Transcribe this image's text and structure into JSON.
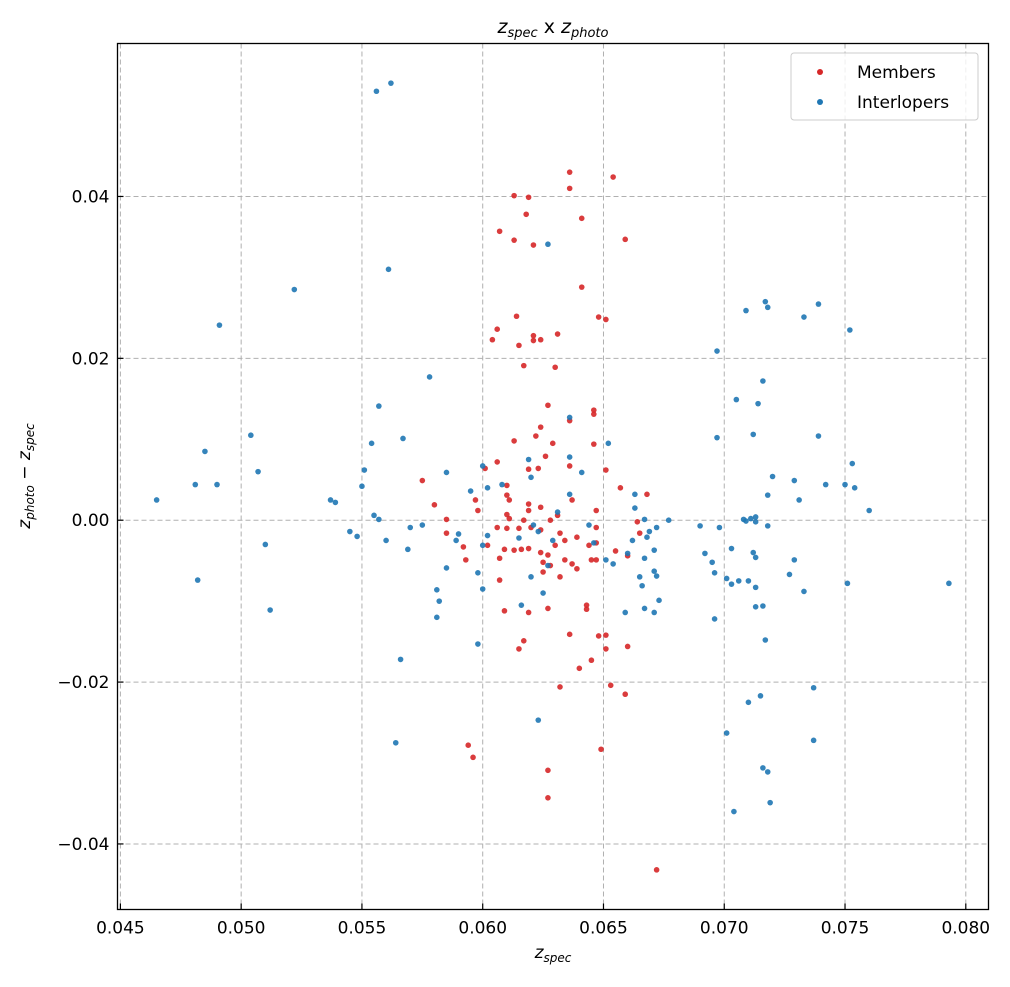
{
  "chart_data": {
    "type": "scatter",
    "title": {
      "a": "z",
      "a_sub": "spec",
      "mid": " x ",
      "b": "z",
      "b_sub": "photo"
    },
    "xlabel": {
      "var": "z",
      "sub": "spec"
    },
    "ylabel": {
      "a": "z",
      "a_sub": "photo",
      "op": " − ",
      "b": "z",
      "b_sub": "spec"
    },
    "xlim": [
      0.04488,
      0.08094
    ],
    "ylim": [
      -0.0481,
      0.0589
    ],
    "grid": true,
    "legend_position": "top-right",
    "xticks": [
      0.045,
      0.05,
      0.055,
      0.06,
      0.065,
      0.07,
      0.075,
      0.08
    ],
    "xtick_labels": [
      "0.045",
      "0.050",
      "0.055",
      "0.060",
      "0.065",
      "0.070",
      "0.075",
      "0.080"
    ],
    "yticks": [
      0.04,
      0.02,
      0.0,
      -0.02,
      -0.04
    ],
    "ytick_labels": [
      "0.04",
      "0.02",
      "0.00",
      "−0.02",
      "−0.04"
    ],
    "series": [
      {
        "name": "Members",
        "color": "#d62728",
        "points": [
          [
            0.0636,
            0.043
          ],
          [
            0.0636,
            0.041
          ],
          [
            0.0654,
            0.0424
          ],
          [
            0.0613,
            0.0401
          ],
          [
            0.0619,
            0.0399
          ],
          [
            0.0618,
            0.0378
          ],
          [
            0.0641,
            0.0373
          ],
          [
            0.0607,
            0.0357
          ],
          [
            0.0613,
            0.0346
          ],
          [
            0.0621,
            0.034
          ],
          [
            0.0659,
            0.0347
          ],
          [
            0.0641,
            0.0288
          ],
          [
            0.0614,
            0.0252
          ],
          [
            0.0606,
            0.0236
          ],
          [
            0.0648,
            0.0251
          ],
          [
            0.0651,
            0.0248
          ],
          [
            0.0604,
            0.0223
          ],
          [
            0.0615,
            0.0216
          ],
          [
            0.0621,
            0.0228
          ],
          [
            0.0621,
            0.0222
          ],
          [
            0.0624,
            0.0223
          ],
          [
            0.0631,
            0.023
          ],
          [
            0.0617,
            0.0191
          ],
          [
            0.063,
            0.0189
          ],
          [
            0.0627,
            0.0142
          ],
          [
            0.0646,
            0.0136
          ],
          [
            0.0646,
            0.0131
          ],
          [
            0.0636,
            0.0123
          ],
          [
            0.0624,
            0.0115
          ],
          [
            0.0613,
            0.0098
          ],
          [
            0.0622,
            0.0104
          ],
          [
            0.0629,
            0.0095
          ],
          [
            0.0646,
            0.0094
          ],
          [
            0.0626,
            0.0079
          ],
          [
            0.0636,
            0.0067
          ],
          [
            0.0606,
            0.0072
          ],
          [
            0.0601,
            0.0064
          ],
          [
            0.0619,
            0.0063
          ],
          [
            0.0623,
            0.0064
          ],
          [
            0.0651,
            0.0062
          ],
          [
            0.0575,
            0.0049
          ],
          [
            0.0657,
            0.004
          ],
          [
            0.0668,
            0.0032
          ],
          [
            0.058,
            0.0019
          ],
          [
            0.0597,
            0.0025
          ],
          [
            0.061,
            0.0043
          ],
          [
            0.061,
            0.0031
          ],
          [
            0.0611,
            0.0025
          ],
          [
            0.0619,
            0.002
          ],
          [
            0.0619,
            0.0012
          ],
          [
            0.0624,
            0.0016
          ],
          [
            0.0637,
            0.0025
          ],
          [
            0.0585,
            0.0001
          ],
          [
            0.0598,
            0.0012
          ],
          [
            0.061,
            0.0007
          ],
          [
            0.0611,
            0.0002
          ],
          [
            0.0617,
            0.0
          ],
          [
            0.0628,
            0.0
          ],
          [
            0.0631,
            0.0006
          ],
          [
            0.0647,
            0.0012
          ],
          [
            0.0585,
            -0.0016
          ],
          [
            0.0606,
            -0.0009
          ],
          [
            0.061,
            -0.001
          ],
          [
            0.0615,
            -0.001
          ],
          [
            0.062,
            -0.0009
          ],
          [
            0.0624,
            -0.0012
          ],
          [
            0.0632,
            -0.0016
          ],
          [
            0.0647,
            -0.0009
          ],
          [
            0.0664,
            -0.0002
          ],
          [
            0.0665,
            -0.0016
          ],
          [
            0.0592,
            -0.0033
          ],
          [
            0.0602,
            -0.0031
          ],
          [
            0.0609,
            -0.0036
          ],
          [
            0.0613,
            -0.0037
          ],
          [
            0.0616,
            -0.0036
          ],
          [
            0.0619,
            -0.0035
          ],
          [
            0.0624,
            -0.004
          ],
          [
            0.0627,
            -0.0043
          ],
          [
            0.063,
            -0.0031
          ],
          [
            0.0634,
            -0.0025
          ],
          [
            0.0639,
            -0.0021
          ],
          [
            0.0644,
            -0.0031
          ],
          [
            0.0647,
            -0.0028
          ],
          [
            0.0655,
            -0.0038
          ],
          [
            0.066,
            -0.0044
          ],
          [
            0.0593,
            -0.0049
          ],
          [
            0.0607,
            -0.0047
          ],
          [
            0.0625,
            -0.0052
          ],
          [
            0.0628,
            -0.0056
          ],
          [
            0.0634,
            -0.0049
          ],
          [
            0.0637,
            -0.0054
          ],
          [
            0.0645,
            -0.0049
          ],
          [
            0.0647,
            -0.0049
          ],
          [
            0.0607,
            -0.0074
          ],
          [
            0.0632,
            -0.007
          ],
          [
            0.0625,
            -0.0064
          ],
          [
            0.0639,
            -0.006
          ],
          [
            0.0643,
            -0.0105
          ],
          [
            0.0643,
            -0.011
          ],
          [
            0.0609,
            -0.0112
          ],
          [
            0.0619,
            -0.0114
          ],
          [
            0.0627,
            -0.0109
          ],
          [
            0.0636,
            -0.0141
          ],
          [
            0.0617,
            -0.0149
          ],
          [
            0.0615,
            -0.0159
          ],
          [
            0.0648,
            -0.0143
          ],
          [
            0.0651,
            -0.0142
          ],
          [
            0.066,
            -0.0156
          ],
          [
            0.0645,
            -0.0173
          ],
          [
            0.064,
            -0.0183
          ],
          [
            0.0651,
            -0.0159
          ],
          [
            0.0653,
            -0.0204
          ],
          [
            0.0659,
            -0.0215
          ],
          [
            0.0632,
            -0.0206
          ],
          [
            0.0594,
            -0.0278
          ],
          [
            0.0596,
            -0.0293
          ],
          [
            0.0649,
            -0.0283
          ],
          [
            0.0627,
            -0.0309
          ],
          [
            0.0627,
            -0.0343
          ],
          [
            0.0672,
            -0.0432
          ]
        ]
      },
      {
        "name": "Interlopers",
        "color": "#1f77b4",
        "points": [
          [
            0.0562,
            0.054
          ],
          [
            0.0556,
            0.053
          ],
          [
            0.0627,
            0.0341
          ],
          [
            0.0561,
            0.031
          ],
          [
            0.0522,
            0.0285
          ],
          [
            0.0491,
            0.0241
          ],
          [
            0.0709,
            0.0259
          ],
          [
            0.0717,
            0.027
          ],
          [
            0.0718,
            0.0263
          ],
          [
            0.0739,
            0.0267
          ],
          [
            0.0733,
            0.0251
          ],
          [
            0.0752,
            0.0235
          ],
          [
            0.0697,
            0.0209
          ],
          [
            0.0578,
            0.0177
          ],
          [
            0.0716,
            0.0172
          ],
          [
            0.0705,
            0.0149
          ],
          [
            0.0714,
            0.0144
          ],
          [
            0.0557,
            0.0141
          ],
          [
            0.0636,
            0.0127
          ],
          [
            0.0504,
            0.0105
          ],
          [
            0.0567,
            0.0101
          ],
          [
            0.0554,
            0.0095
          ],
          [
            0.0652,
            0.0095
          ],
          [
            0.0697,
            0.0102
          ],
          [
            0.0712,
            0.0106
          ],
          [
            0.0739,
            0.0104
          ],
          [
            0.0485,
            0.0085
          ],
          [
            0.0636,
            0.0078
          ],
          [
            0.0619,
            0.0075
          ],
          [
            0.0507,
            0.006
          ],
          [
            0.0551,
            0.0062
          ],
          [
            0.0585,
            0.0059
          ],
          [
            0.06,
            0.0067
          ],
          [
            0.0641,
            0.0059
          ],
          [
            0.072,
            0.0054
          ],
          [
            0.0753,
            0.007
          ],
          [
            0.0729,
            0.0049
          ],
          [
            0.0481,
            0.0044
          ],
          [
            0.049,
            0.0044
          ],
          [
            0.055,
            0.0042
          ],
          [
            0.0608,
            0.0044
          ],
          [
            0.0602,
            0.004
          ],
          [
            0.062,
            0.0053
          ],
          [
            0.0742,
            0.0044
          ],
          [
            0.075,
            0.0044
          ],
          [
            0.0754,
            0.004
          ],
          [
            0.0465,
            0.0025
          ],
          [
            0.0537,
            0.0025
          ],
          [
            0.0539,
            0.0022
          ],
          [
            0.0595,
            0.0036
          ],
          [
            0.0636,
            0.0032
          ],
          [
            0.0663,
            0.0015
          ],
          [
            0.0663,
            0.0032
          ],
          [
            0.0718,
            0.0031
          ],
          [
            0.0731,
            0.0025
          ],
          [
            0.076,
            0.0012
          ],
          [
            0.0555,
            0.0006
          ],
          [
            0.0557,
            0.0001
          ],
          [
            0.0631,
            0.001
          ],
          [
            0.0667,
            0.0001
          ],
          [
            0.0677,
            0.0
          ],
          [
            0.0708,
            0.0001
          ],
          [
            0.0709,
            -0.0001
          ],
          [
            0.0711,
            0.0002
          ],
          [
            0.0713,
            -0.0002
          ],
          [
            0.0718,
            -0.0007
          ],
          [
            0.0713,
            0.0004
          ],
          [
            0.0545,
            -0.0014
          ],
          [
            0.0548,
            -0.002
          ],
          [
            0.057,
            -0.0009
          ],
          [
            0.0575,
            -0.0006
          ],
          [
            0.059,
            -0.0017
          ],
          [
            0.0602,
            -0.0019
          ],
          [
            0.0621,
            -0.0006
          ],
          [
            0.0644,
            -0.0006
          ],
          [
            0.0669,
            -0.0014
          ],
          [
            0.0672,
            -0.0009
          ],
          [
            0.069,
            -0.0007
          ],
          [
            0.0698,
            -0.0009
          ],
          [
            0.056,
            -0.0025
          ],
          [
            0.0589,
            -0.0025
          ],
          [
            0.0615,
            -0.0022
          ],
          [
            0.0623,
            -0.0014
          ],
          [
            0.0629,
            -0.0025
          ],
          [
            0.0668,
            -0.0021
          ],
          [
            0.0662,
            -0.0025
          ],
          [
            0.0646,
            -0.0028
          ],
          [
            0.051,
            -0.003
          ],
          [
            0.0569,
            -0.0036
          ],
          [
            0.06,
            -0.0031
          ],
          [
            0.0671,
            -0.0037
          ],
          [
            0.0692,
            -0.0041
          ],
          [
            0.0703,
            -0.0035
          ],
          [
            0.0712,
            -0.004
          ],
          [
            0.0651,
            -0.0049
          ],
          [
            0.066,
            -0.0041
          ],
          [
            0.0667,
            -0.0047
          ],
          [
            0.0695,
            -0.0052
          ],
          [
            0.0729,
            -0.0049
          ],
          [
            0.0627,
            -0.0056
          ],
          [
            0.0585,
            -0.0059
          ],
          [
            0.0654,
            -0.0054
          ],
          [
            0.0671,
            -0.0063
          ],
          [
            0.0696,
            -0.0065
          ],
          [
            0.0713,
            -0.0046
          ],
          [
            0.0701,
            -0.0072
          ],
          [
            0.0727,
            -0.0067
          ],
          [
            0.0665,
            -0.007
          ],
          [
            0.0672,
            -0.0069
          ],
          [
            0.062,
            -0.007
          ],
          [
            0.0598,
            -0.0065
          ],
          [
            0.0706,
            -0.0075
          ],
          [
            0.071,
            -0.0075
          ],
          [
            0.0482,
            -0.0074
          ],
          [
            0.0703,
            -0.0079
          ],
          [
            0.0713,
            -0.0083
          ],
          [
            0.0751,
            -0.0078
          ],
          [
            0.0793,
            -0.0078
          ],
          [
            0.0733,
            -0.0088
          ],
          [
            0.0581,
            -0.0086
          ],
          [
            0.0582,
            -0.01
          ],
          [
            0.06,
            -0.0085
          ],
          [
            0.0666,
            -0.0081
          ],
          [
            0.0673,
            -0.0099
          ],
          [
            0.0616,
            -0.0105
          ],
          [
            0.0625,
            -0.009
          ],
          [
            0.0713,
            -0.0107
          ],
          [
            0.0716,
            -0.0106
          ],
          [
            0.0512,
            -0.0111
          ],
          [
            0.0581,
            -0.012
          ],
          [
            0.0659,
            -0.0114
          ],
          [
            0.0667,
            -0.0109
          ],
          [
            0.0671,
            -0.0114
          ],
          [
            0.0696,
            -0.0122
          ],
          [
            0.0598,
            -0.0153
          ],
          [
            0.0717,
            -0.0148
          ],
          [
            0.0566,
            -0.0172
          ],
          [
            0.0623,
            -0.0247
          ],
          [
            0.071,
            -0.0225
          ],
          [
            0.0715,
            -0.0217
          ],
          [
            0.0737,
            -0.0207
          ],
          [
            0.0701,
            -0.0263
          ],
          [
            0.0564,
            -0.0275
          ],
          [
            0.0737,
            -0.0272
          ],
          [
            0.0716,
            -0.0306
          ],
          [
            0.0718,
            -0.0311
          ],
          [
            0.0719,
            -0.0349
          ],
          [
            0.0704,
            -0.036
          ]
        ]
      }
    ]
  }
}
